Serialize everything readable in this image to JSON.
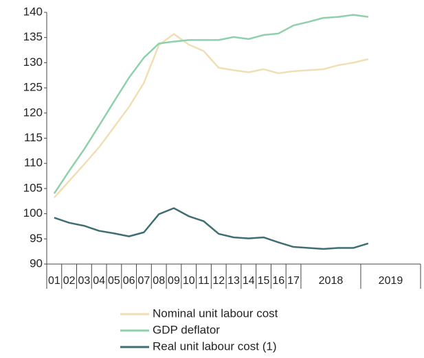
{
  "chart_data": {
    "type": "line",
    "categories": [
      "01",
      "02",
      "03",
      "04",
      "05",
      "06",
      "07",
      "08",
      "09",
      "10",
      "11",
      "12",
      "13",
      "14",
      "15",
      "16",
      "17",
      null,
      null,
      null,
      null,
      null,
      null,
      null,
      null
    ],
    "x_groups": [
      "2018",
      "2019"
    ],
    "series": [
      {
        "name": "Nominal unit labour cost",
        "color": "#f0dfb4",
        "values": [
          103.2,
          106.5,
          109.8,
          113.2,
          117.2,
          121.2,
          126,
          133.5,
          135.7,
          133.6,
          132.3,
          129,
          128.5,
          128.1,
          128.7,
          127.9,
          128.3,
          128.5,
          128.7,
          129.5,
          130,
          130.7,
          null,
          null,
          null
        ]
      },
      {
        "name": "GDP deflator",
        "color": "#8fd0ac",
        "values": [
          104,
          108.5,
          112.8,
          117.5,
          122.3,
          127,
          131,
          133.8,
          134.2,
          134.5,
          134.5,
          134.5,
          135.1,
          134.7,
          135.5,
          135.8,
          137.4,
          138.1,
          138.9,
          139.1,
          139.5,
          139.1,
          null,
          null,
          null
        ]
      },
      {
        "name": "Real unit labour cost (1)",
        "color": "#3f6e72",
        "values": [
          99.2,
          98.2,
          97.6,
          96.6,
          96.1,
          95.5,
          96.3,
          99.9,
          101.1,
          99.5,
          98.5,
          96,
          95.3,
          95.1,
          95.3,
          94.3,
          93.4,
          93.2,
          93,
          93.2,
          93.2,
          94.1,
          null,
          null,
          null
        ]
      }
    ],
    "ylim": [
      90,
      140
    ],
    "yticks": [
      90,
      95,
      100,
      105,
      110,
      115,
      120,
      125,
      130,
      135,
      140
    ],
    "grid": false
  }
}
